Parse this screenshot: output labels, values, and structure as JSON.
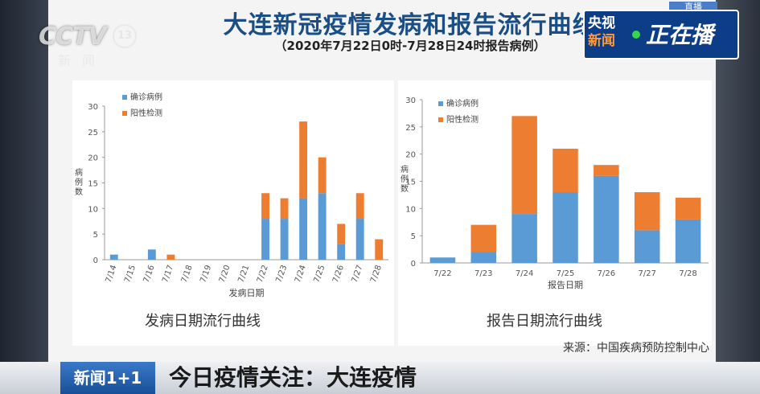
{
  "header": {
    "title": "大连新冠疫情发病和报告流行曲线",
    "subtitle": "（2020年7月22日0时-7月28日24时报告病例）"
  },
  "broadcast": {
    "channel_logo": "CCTV",
    "channel_number": "13",
    "channel_sub": "新闻",
    "live_left_line1": "央视",
    "live_left_line2": "新闻",
    "live_right": "正在播",
    "live_tag": "直播"
  },
  "chart_data": [
    {
      "type": "bar",
      "stacked": true,
      "caption": "发病日期流行曲线",
      "xlabel": "发病日期",
      "ylabel": "病例数",
      "ylim": [
        0,
        30
      ],
      "yticks": [
        0,
        5,
        10,
        15,
        20,
        25,
        30
      ],
      "legend_position": "top-left",
      "categories": [
        "7/14",
        "7/15",
        "7/16",
        "7/17",
        "7/18",
        "7/19",
        "7/20",
        "7/21",
        "7/22",
        "7/23",
        "7/24",
        "7/25",
        "7/26",
        "7/27",
        "7/28"
      ],
      "series": [
        {
          "name": "确诊病例",
          "color": "#5b9bd5",
          "values": [
            1,
            0,
            2,
            0,
            0,
            0,
            0,
            0,
            8,
            8,
            12,
            13,
            3,
            8,
            0
          ]
        },
        {
          "name": "阳性检测",
          "color": "#ed7d31",
          "values": [
            0,
            0,
            0,
            1,
            0,
            0,
            0,
            0,
            5,
            4,
            15,
            7,
            4,
            5,
            4
          ]
        }
      ]
    },
    {
      "type": "bar",
      "stacked": true,
      "caption": "报告日期流行曲线",
      "xlabel": "报告日期",
      "ylabel": "病例数",
      "ylim": [
        0,
        30
      ],
      "yticks": [
        0,
        5,
        10,
        15,
        20,
        25,
        30
      ],
      "legend_position": "top-left",
      "categories": [
        "7/22",
        "7/23",
        "7/24",
        "7/25",
        "7/26",
        "7/27",
        "7/28"
      ],
      "series": [
        {
          "name": "确诊病例",
          "color": "#5b9bd5",
          "values": [
            1,
            2,
            9,
            13,
            16,
            6,
            8
          ]
        },
        {
          "name": "阳性检测",
          "color": "#ed7d31",
          "values": [
            0,
            5,
            18,
            8,
            2,
            7,
            4
          ]
        }
      ]
    }
  ],
  "source": "来源：中国疾病预防控制中心",
  "ticker": {
    "badge": "新闻1+1",
    "text": "今日疫情关注：大连疫情"
  }
}
